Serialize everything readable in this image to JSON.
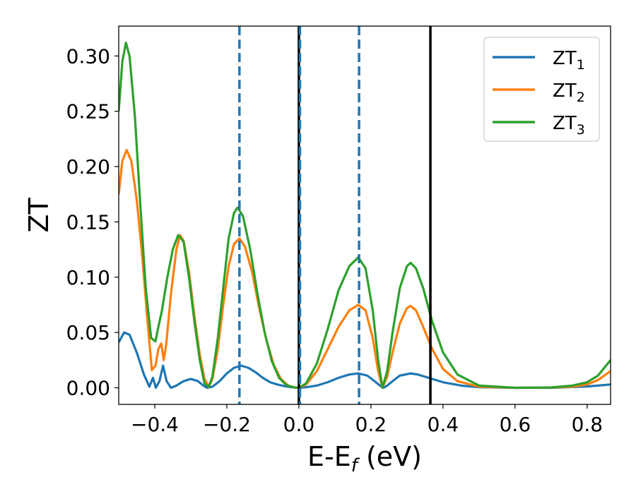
{
  "chart_data": {
    "type": "line",
    "xlabel_main": "E-E",
    "xlabel_sub": "f",
    "xlabel_unit": " (eV)",
    "ylabel": "ZT",
    "xlim": [
      -0.5,
      0.865
    ],
    "ylim": [
      -0.015,
      0.327
    ],
    "xticks": [
      {
        "v": -0.4,
        "label": "−0.4"
      },
      {
        "v": -0.2,
        "label": "−0.2"
      },
      {
        "v": 0.0,
        "label": "0.0"
      },
      {
        "v": 0.2,
        "label": "0.2"
      },
      {
        "v": 0.4,
        "label": "0.4"
      },
      {
        "v": 0.6,
        "label": "0.6"
      },
      {
        "v": 0.8,
        "label": "0.8"
      }
    ],
    "yticks": [
      {
        "v": 0.0,
        "label": "0.00"
      },
      {
        "v": 0.05,
        "label": "0.05"
      },
      {
        "v": 0.1,
        "label": "0.10"
      },
      {
        "v": 0.15,
        "label": "0.15"
      },
      {
        "v": 0.2,
        "label": "0.20"
      },
      {
        "v": 0.25,
        "label": "0.25"
      },
      {
        "v": 0.3,
        "label": "0.30"
      }
    ],
    "legend_position": "top-right",
    "series": [
      {
        "name": "ZT",
        "sub": "1",
        "color": "#1f77b4",
        "points": [
          [
            -0.5,
            0.041
          ],
          [
            -0.485,
            0.05
          ],
          [
            -0.47,
            0.048
          ],
          [
            -0.45,
            0.032
          ],
          [
            -0.43,
            0.012
          ],
          [
            -0.415,
            0.001
          ],
          [
            -0.405,
            0.009
          ],
          [
            -0.397,
            0.0
          ],
          [
            -0.387,
            0.006
          ],
          [
            -0.377,
            0.02
          ],
          [
            -0.367,
            0.006
          ],
          [
            -0.355,
            0.0
          ],
          [
            -0.34,
            0.002
          ],
          [
            -0.32,
            0.006
          ],
          [
            -0.3,
            0.008
          ],
          [
            -0.28,
            0.006
          ],
          [
            -0.265,
            0.002
          ],
          [
            -0.255,
            0.0
          ],
          [
            -0.24,
            0.001
          ],
          [
            -0.22,
            0.006
          ],
          [
            -0.2,
            0.013
          ],
          [
            -0.18,
            0.018
          ],
          [
            -0.16,
            0.02
          ],
          [
            -0.14,
            0.018
          ],
          [
            -0.12,
            0.014
          ],
          [
            -0.1,
            0.009
          ],
          [
            -0.08,
            0.005
          ],
          [
            -0.06,
            0.003
          ],
          [
            -0.04,
            0.0015
          ],
          [
            -0.02,
            0.0005
          ],
          [
            0.0,
            0.0
          ],
          [
            0.02,
            0.0005
          ],
          [
            0.05,
            0.002
          ],
          [
            0.08,
            0.005
          ],
          [
            0.11,
            0.009
          ],
          [
            0.14,
            0.012
          ],
          [
            0.165,
            0.013
          ],
          [
            0.19,
            0.011
          ],
          [
            0.21,
            0.006
          ],
          [
            0.225,
            0.002
          ],
          [
            0.235,
            0.0
          ],
          [
            0.245,
            0.002
          ],
          [
            0.26,
            0.006
          ],
          [
            0.28,
            0.011
          ],
          [
            0.31,
            0.013
          ],
          [
            0.33,
            0.012
          ],
          [
            0.36,
            0.009
          ],
          [
            0.4,
            0.005
          ],
          [
            0.45,
            0.002
          ],
          [
            0.5,
            0.0005
          ],
          [
            0.6,
            0.0
          ],
          [
            0.7,
            0.0
          ],
          [
            0.75,
            0.0005
          ],
          [
            0.8,
            0.0012
          ],
          [
            0.83,
            0.002
          ],
          [
            0.865,
            0.003
          ]
        ]
      },
      {
        "name": "ZT",
        "sub": "2",
        "color": "#ff7f0e",
        "points": [
          [
            -0.5,
            0.175
          ],
          [
            -0.49,
            0.205
          ],
          [
            -0.478,
            0.215
          ],
          [
            -0.465,
            0.205
          ],
          [
            -0.45,
            0.17
          ],
          [
            -0.435,
            0.12
          ],
          [
            -0.42,
            0.06
          ],
          [
            -0.408,
            0.016
          ],
          [
            -0.398,
            0.02
          ],
          [
            -0.39,
            0.035
          ],
          [
            -0.382,
            0.04
          ],
          [
            -0.375,
            0.025
          ],
          [
            -0.368,
            0.04
          ],
          [
            -0.355,
            0.085
          ],
          [
            -0.34,
            0.125
          ],
          [
            -0.33,
            0.138
          ],
          [
            -0.32,
            0.133
          ],
          [
            -0.305,
            0.105
          ],
          [
            -0.29,
            0.065
          ],
          [
            -0.275,
            0.03
          ],
          [
            -0.262,
            0.008
          ],
          [
            -0.25,
            0.001
          ],
          [
            -0.24,
            0.008
          ],
          [
            -0.225,
            0.035
          ],
          [
            -0.21,
            0.075
          ],
          [
            -0.195,
            0.11
          ],
          [
            -0.18,
            0.13
          ],
          [
            -0.165,
            0.135
          ],
          [
            -0.15,
            0.128
          ],
          [
            -0.13,
            0.105
          ],
          [
            -0.11,
            0.072
          ],
          [
            -0.09,
            0.043
          ],
          [
            -0.07,
            0.021
          ],
          [
            -0.05,
            0.008
          ],
          [
            -0.03,
            0.002
          ],
          [
            -0.01,
            0.0002
          ],
          [
            0.0,
            0.0
          ],
          [
            0.02,
            0.003
          ],
          [
            0.05,
            0.015
          ],
          [
            0.08,
            0.035
          ],
          [
            0.11,
            0.055
          ],
          [
            0.14,
            0.07
          ],
          [
            0.165,
            0.075
          ],
          [
            0.185,
            0.07
          ],
          [
            0.205,
            0.045
          ],
          [
            0.22,
            0.015
          ],
          [
            0.232,
            0.0
          ],
          [
            0.245,
            0.01
          ],
          [
            0.26,
            0.032
          ],
          [
            0.28,
            0.058
          ],
          [
            0.3,
            0.072
          ],
          [
            0.31,
            0.074
          ],
          [
            0.325,
            0.07
          ],
          [
            0.345,
            0.055
          ],
          [
            0.37,
            0.035
          ],
          [
            0.4,
            0.017
          ],
          [
            0.44,
            0.006
          ],
          [
            0.5,
            0.001
          ],
          [
            0.6,
            0.0
          ],
          [
            0.7,
            0.0002
          ],
          [
            0.76,
            0.001
          ],
          [
            0.8,
            0.003
          ],
          [
            0.83,
            0.007
          ],
          [
            0.865,
            0.015
          ]
        ]
      },
      {
        "name": "ZT",
        "sub": "3",
        "color": "#2ca02c",
        "points": [
          [
            -0.5,
            0.25
          ],
          [
            -0.49,
            0.295
          ],
          [
            -0.48,
            0.312
          ],
          [
            -0.47,
            0.3
          ],
          [
            -0.455,
            0.245
          ],
          [
            -0.44,
            0.165
          ],
          [
            -0.425,
            0.09
          ],
          [
            -0.41,
            0.045
          ],
          [
            -0.398,
            0.042
          ],
          [
            -0.39,
            0.055
          ],
          [
            -0.38,
            0.07
          ],
          [
            -0.365,
            0.1
          ],
          [
            -0.35,
            0.125
          ],
          [
            -0.335,
            0.138
          ],
          [
            -0.32,
            0.132
          ],
          [
            -0.305,
            0.1
          ],
          [
            -0.29,
            0.06
          ],
          [
            -0.275,
            0.025
          ],
          [
            -0.262,
            0.004
          ],
          [
            -0.25,
            0.001
          ],
          [
            -0.24,
            0.01
          ],
          [
            -0.225,
            0.045
          ],
          [
            -0.21,
            0.09
          ],
          [
            -0.195,
            0.135
          ],
          [
            -0.18,
            0.158
          ],
          [
            -0.17,
            0.163
          ],
          [
            -0.155,
            0.155
          ],
          [
            -0.135,
            0.125
          ],
          [
            -0.115,
            0.085
          ],
          [
            -0.095,
            0.05
          ],
          [
            -0.075,
            0.024
          ],
          [
            -0.055,
            0.009
          ],
          [
            -0.035,
            0.0025
          ],
          [
            -0.015,
            0.0003
          ],
          [
            0.0,
            0.0
          ],
          [
            0.02,
            0.004
          ],
          [
            0.05,
            0.022
          ],
          [
            0.08,
            0.053
          ],
          [
            0.11,
            0.088
          ],
          [
            0.14,
            0.11
          ],
          [
            0.165,
            0.118
          ],
          [
            0.185,
            0.108
          ],
          [
            0.205,
            0.07
          ],
          [
            0.22,
            0.025
          ],
          [
            0.232,
            0.0
          ],
          [
            0.245,
            0.015
          ],
          [
            0.26,
            0.05
          ],
          [
            0.28,
            0.09
          ],
          [
            0.3,
            0.11
          ],
          [
            0.31,
            0.113
          ],
          [
            0.325,
            0.108
          ],
          [
            0.345,
            0.09
          ],
          [
            0.37,
            0.06
          ],
          [
            0.4,
            0.032
          ],
          [
            0.44,
            0.012
          ],
          [
            0.5,
            0.002
          ],
          [
            0.6,
            0.0
          ],
          [
            0.7,
            0.0003
          ],
          [
            0.76,
            0.002
          ],
          [
            0.8,
            0.005
          ],
          [
            0.83,
            0.011
          ],
          [
            0.865,
            0.025
          ]
        ]
      }
    ],
    "vlines": [
      {
        "x": -0.165,
        "style": "dashed",
        "color": "#1f77b4"
      },
      {
        "x": 0.0,
        "style": "solid",
        "color": "#000000"
      },
      {
        "x": 0.003,
        "style": "dashed",
        "color": "#1f77b4"
      },
      {
        "x": 0.167,
        "style": "dashed",
        "color": "#1f77b4"
      },
      {
        "x": 0.365,
        "style": "solid",
        "color": "#000000"
      }
    ]
  }
}
